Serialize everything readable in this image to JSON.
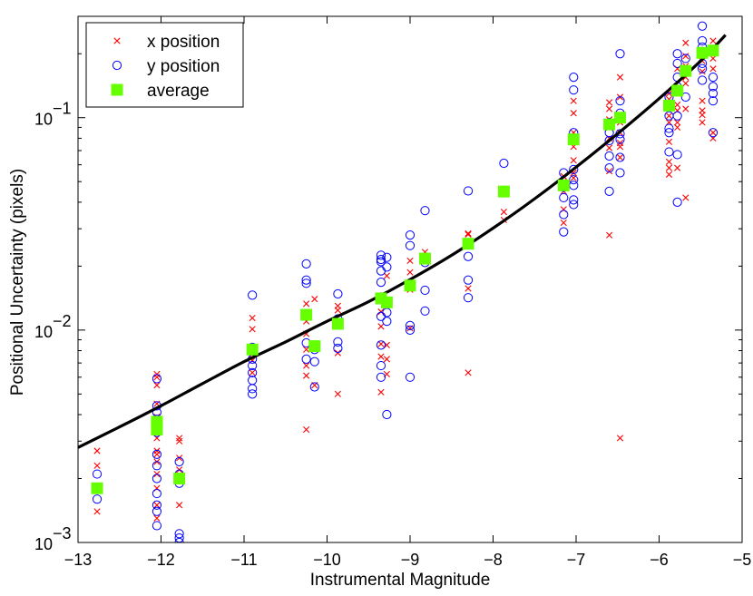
{
  "chart_data": {
    "type": "scatter",
    "xlabel": "Instrumental Magnitude",
    "ylabel": "Positional Uncertainty (pixels)",
    "xlim": [
      -13,
      -5
    ],
    "ylim": [
      0.001,
      0.3
    ],
    "yscale": "log",
    "x_ticks": [
      -13,
      -12,
      -11,
      -10,
      -9,
      -8,
      -7,
      -6,
      -5
    ],
    "x_tick_labels": [
      "−13",
      "−12",
      "−11",
      "−10",
      "−9",
      "−8",
      "−7",
      "−6",
      "−5"
    ],
    "y_ticks": [
      0.001,
      0.01,
      0.1
    ],
    "y_tick_bases": [
      "10",
      "10",
      "10"
    ],
    "y_tick_exponents": [
      "−3",
      "−2",
      "−1"
    ],
    "grid": false,
    "legend": {
      "placement": "top-left",
      "entries": [
        {
          "label": "x position",
          "marker": "x",
          "color": "#ff0000"
        },
        {
          "label": "y position",
          "marker": "o",
          "color": "#0000ff"
        },
        {
          "label": "average",
          "marker": "square",
          "color": "#66ff00"
        }
      ]
    },
    "fit_curve": {
      "name": "model",
      "color": "#000000",
      "x": [
        -13,
        -12.5,
        -12,
        -11.5,
        -11,
        -10.5,
        -10,
        -9.5,
        -9,
        -8.5,
        -8,
        -7.5,
        -7,
        -6.5,
        -6,
        -5.5,
        -5.2
      ],
      "y": [
        0.0028,
        0.0035,
        0.0044,
        0.0056,
        0.0071,
        0.0088,
        0.011,
        0.0136,
        0.0173,
        0.0225,
        0.0302,
        0.0415,
        0.0585,
        0.084,
        0.123,
        0.185,
        0.245
      ]
    },
    "series": [
      {
        "name": "x position",
        "marker": "x",
        "color": "#ff0000",
        "points": [
          [
            -12.77,
            0.0027
          ],
          [
            -12.77,
            0.0023
          ],
          [
            -12.77,
            0.0014
          ],
          [
            -12.05,
            0.0062
          ],
          [
            -12.05,
            0.006
          ],
          [
            -12.05,
            0.0055
          ],
          [
            -12.05,
            0.0045
          ],
          [
            -12.05,
            0.0039
          ],
          [
            -12.05,
            0.0031
          ],
          [
            -12.05,
            0.0027
          ],
          [
            -12.05,
            0.0026
          ],
          [
            -12.05,
            0.0024
          ],
          [
            -12.05,
            0.0021
          ],
          [
            -12.05,
            0.0018
          ],
          [
            -12.05,
            0.0015
          ],
          [
            -12.05,
            0.0013
          ],
          [
            -11.78,
            0.0031
          ],
          [
            -11.78,
            0.003
          ],
          [
            -11.78,
            0.0025
          ],
          [
            -11.78,
            0.0022
          ],
          [
            -11.78,
            0.0015
          ],
          [
            -10.9,
            0.0114
          ],
          [
            -10.9,
            0.0101
          ],
          [
            -10.9,
            0.0077
          ],
          [
            -10.9,
            0.0072
          ],
          [
            -10.9,
            0.0063
          ],
          [
            -10.25,
            0.0133
          ],
          [
            -10.25,
            0.011
          ],
          [
            -10.25,
            0.0096
          ],
          [
            -10.25,
            0.0081
          ],
          [
            -10.25,
            0.0068
          ],
          [
            -10.25,
            0.0061
          ],
          [
            -10.25,
            0.0034
          ],
          [
            -10.15,
            0.014
          ],
          [
            -10.15,
            0.0055
          ],
          [
            -9.87,
            0.013
          ],
          [
            -9.87,
            0.0124
          ],
          [
            -9.87,
            0.0078
          ],
          [
            -9.87,
            0.005
          ],
          [
            -9.35,
            0.0138
          ],
          [
            -9.35,
            0.0122
          ],
          [
            -9.35,
            0.0104
          ],
          [
            -9.35,
            0.0086
          ],
          [
            -9.35,
            0.0075
          ],
          [
            -9.35,
            0.0051
          ],
          [
            -9.28,
            0.018
          ],
          [
            -9.28,
            0.0085
          ],
          [
            -9.28,
            0.0073
          ],
          [
            -9.28,
            0.0062
          ],
          [
            -9.0,
            0.0212
          ],
          [
            -9.0,
            0.0187
          ],
          [
            -9.0,
            0.0155
          ],
          [
            -9.0,
            0.0102
          ],
          [
            -8.82,
            0.0233
          ],
          [
            -8.82,
            0.0211
          ],
          [
            -8.3,
            0.0285
          ],
          [
            -8.3,
            0.0282
          ],
          [
            -8.3,
            0.0157
          ],
          [
            -8.3,
            0.0063
          ],
          [
            -7.87,
            0.0455
          ],
          [
            -7.87,
            0.036
          ],
          [
            -7.87,
            0.033
          ],
          [
            -7.15,
            0.053
          ],
          [
            -7.15,
            0.05
          ],
          [
            -7.15,
            0.045
          ],
          [
            -7.15,
            0.037
          ],
          [
            -7.15,
            0.032
          ],
          [
            -7.03,
            0.12
          ],
          [
            -7.03,
            0.105
          ],
          [
            -7.03,
            0.085
          ],
          [
            -7.03,
            0.073
          ],
          [
            -7.03,
            0.063
          ],
          [
            -7.03,
            0.055
          ],
          [
            -7.03,
            0.052
          ],
          [
            -6.6,
            0.118
          ],
          [
            -6.6,
            0.11
          ],
          [
            -6.6,
            0.098
          ],
          [
            -6.6,
            0.09
          ],
          [
            -6.6,
            0.08
          ],
          [
            -6.6,
            0.072
          ],
          [
            -6.6,
            0.056
          ],
          [
            -6.6,
            0.028
          ],
          [
            -6.47,
            0.155
          ],
          [
            -6.47,
            0.125
          ],
          [
            -6.47,
            0.095
          ],
          [
            -6.47,
            0.085
          ],
          [
            -6.47,
            0.076
          ],
          [
            -6.47,
            0.073
          ],
          [
            -6.47,
            0.065
          ],
          [
            -6.47,
            0.0031
          ],
          [
            -5.88,
            0.13
          ],
          [
            -5.88,
            0.122
          ],
          [
            -5.88,
            0.115
          ],
          [
            -5.88,
            0.102
          ],
          [
            -5.88,
            0.095
          ],
          [
            -5.88,
            0.077
          ],
          [
            -5.88,
            0.062
          ],
          [
            -5.88,
            0.058
          ],
          [
            -5.88,
            0.054
          ],
          [
            -5.78,
            0.17
          ],
          [
            -5.78,
            0.115
          ],
          [
            -5.78,
            0.108
          ],
          [
            -5.78,
            0.095
          ],
          [
            -5.78,
            0.09
          ],
          [
            -5.78,
            0.058
          ],
          [
            -5.68,
            0.225
          ],
          [
            -5.68,
            0.195
          ],
          [
            -5.68,
            0.175
          ],
          [
            -5.68,
            0.155
          ],
          [
            -5.68,
            0.145
          ],
          [
            -5.68,
            0.11
          ],
          [
            -5.68,
            0.042
          ],
          [
            -5.48,
            0.2
          ],
          [
            -5.48,
            0.185
          ],
          [
            -5.48,
            0.165
          ],
          [
            -5.48,
            0.12
          ],
          [
            -5.48,
            0.108
          ],
          [
            -5.48,
            0.103
          ],
          [
            -5.48,
            0.095
          ],
          [
            -5.35,
            0.23
          ],
          [
            -5.35,
            0.19
          ],
          [
            -5.35,
            0.17
          ],
          [
            -5.35,
            0.085
          ],
          [
            -5.35,
            0.08
          ]
        ]
      },
      {
        "name": "y position",
        "marker": "o",
        "color": "#0000ff",
        "points": [
          [
            -12.77,
            0.0021
          ],
          [
            -12.77,
            0.0016
          ],
          [
            -12.05,
            0.0059
          ],
          [
            -12.05,
            0.0044
          ],
          [
            -12.05,
            0.0041
          ],
          [
            -12.05,
            0.0038
          ],
          [
            -12.05,
            0.0033
          ],
          [
            -12.05,
            0.0026
          ],
          [
            -12.05,
            0.0023
          ],
          [
            -12.05,
            0.002
          ],
          [
            -12.05,
            0.0017
          ],
          [
            -12.05,
            0.0015
          ],
          [
            -12.05,
            0.0014
          ],
          [
            -12.05,
            0.0012
          ],
          [
            -11.78,
            0.0024
          ],
          [
            -11.78,
            0.0021
          ],
          [
            -11.78,
            0.0019
          ],
          [
            -11.78,
            0.0011
          ],
          [
            -11.78,
            0.00105
          ],
          [
            -11.78,
            0.001
          ],
          [
            -10.9,
            0.0146
          ],
          [
            -10.9,
            0.0083
          ],
          [
            -10.9,
            0.0073
          ],
          [
            -10.9,
            0.0068
          ],
          [
            -10.9,
            0.0063
          ],
          [
            -10.9,
            0.0058
          ],
          [
            -10.9,
            0.0053
          ],
          [
            -10.9,
            0.005
          ],
          [
            -10.25,
            0.0205
          ],
          [
            -10.25,
            0.0172
          ],
          [
            -10.25,
            0.0166
          ],
          [
            -10.25,
            0.0087
          ],
          [
            -10.25,
            0.0073
          ],
          [
            -10.15,
            0.0081
          ],
          [
            -10.15,
            0.0071
          ],
          [
            -10.15,
            0.0054
          ],
          [
            -9.87,
            0.0148
          ],
          [
            -9.87,
            0.0113
          ],
          [
            -9.87,
            0.0088
          ],
          [
            -9.87,
            0.0082
          ],
          [
            -9.35,
            0.0225
          ],
          [
            -9.35,
            0.0215
          ],
          [
            -9.35,
            0.021
          ],
          [
            -9.35,
            0.019
          ],
          [
            -9.35,
            0.0168
          ],
          [
            -9.35,
            0.0143
          ],
          [
            -9.35,
            0.0116
          ],
          [
            -9.35,
            0.0085
          ],
          [
            -9.35,
            0.0068
          ],
          [
            -9.35,
            0.006
          ],
          [
            -9.28,
            0.022
          ],
          [
            -9.28,
            0.0198
          ],
          [
            -9.28,
            0.0121
          ],
          [
            -9.28,
            0.011
          ],
          [
            -9.28,
            0.004
          ],
          [
            -9.0,
            0.028
          ],
          [
            -9.0,
            0.025
          ],
          [
            -9.0,
            0.0105
          ],
          [
            -9.0,
            0.01
          ],
          [
            -9.0,
            0.006
          ],
          [
            -8.82,
            0.0365
          ],
          [
            -8.82,
            0.0208
          ],
          [
            -8.82,
            0.0154
          ],
          [
            -8.82,
            0.0123
          ],
          [
            -8.3,
            0.0452
          ],
          [
            -8.3,
            0.0222
          ],
          [
            -8.3,
            0.0172
          ],
          [
            -8.3,
            0.0142
          ],
          [
            -7.87,
            0.061
          ],
          [
            -7.87,
            0.045
          ],
          [
            -7.15,
            0.055
          ],
          [
            -7.15,
            0.047
          ],
          [
            -7.15,
            0.042
          ],
          [
            -7.15,
            0.035
          ],
          [
            -7.15,
            0.029
          ],
          [
            -7.03,
            0.155
          ],
          [
            -7.03,
            0.135
          ],
          [
            -7.03,
            0.085
          ],
          [
            -7.03,
            0.057
          ],
          [
            -7.03,
            0.051
          ],
          [
            -7.03,
            0.048
          ],
          [
            -7.03,
            0.041
          ],
          [
            -7.03,
            0.039
          ],
          [
            -6.6,
            0.095
          ],
          [
            -6.6,
            0.085
          ],
          [
            -6.6,
            0.078
          ],
          [
            -6.6,
            0.066
          ],
          [
            -6.6,
            0.058
          ],
          [
            -6.6,
            0.045
          ],
          [
            -6.47,
            0.2
          ],
          [
            -6.47,
            0.12
          ],
          [
            -6.47,
            0.105
          ],
          [
            -6.47,
            0.084
          ],
          [
            -6.47,
            0.079
          ],
          [
            -6.47,
            0.065
          ],
          [
            -6.47,
            0.055
          ],
          [
            -5.88,
            0.125
          ],
          [
            -5.88,
            0.102
          ],
          [
            -5.88,
            0.089
          ],
          [
            -5.88,
            0.085
          ],
          [
            -5.88,
            0.069
          ],
          [
            -5.78,
            0.2
          ],
          [
            -5.78,
            0.18
          ],
          [
            -5.78,
            0.155
          ],
          [
            -5.78,
            0.14
          ],
          [
            -5.78,
            0.102
          ],
          [
            -5.78,
            0.067
          ],
          [
            -5.78,
            0.04
          ],
          [
            -5.68,
            0.19
          ],
          [
            -5.68,
            0.125
          ],
          [
            -5.48,
            0.27
          ],
          [
            -5.48,
            0.23
          ],
          [
            -5.48,
            0.215
          ],
          [
            -5.48,
            0.205
          ],
          [
            -5.48,
            0.18
          ],
          [
            -5.48,
            0.17
          ],
          [
            -5.48,
            0.15
          ],
          [
            -5.35,
            0.155
          ],
          [
            -5.35,
            0.14
          ],
          [
            -5.35,
            0.13
          ],
          [
            -5.35,
            0.12
          ],
          [
            -5.35,
            0.085
          ]
        ]
      },
      {
        "name": "average",
        "marker": "square",
        "color": "#66ff00",
        "points": [
          [
            -12.77,
            0.0018
          ],
          [
            -12.05,
            0.0037
          ],
          [
            -12.05,
            0.0034
          ],
          [
            -11.78,
            0.002
          ],
          [
            -10.9,
            0.0081
          ],
          [
            -10.25,
            0.0118
          ],
          [
            -10.15,
            0.0084
          ],
          [
            -9.87,
            0.0107
          ],
          [
            -9.35,
            0.0141
          ],
          [
            -9.28,
            0.0135
          ],
          [
            -9.0,
            0.0162
          ],
          [
            -8.82,
            0.0217
          ],
          [
            -8.3,
            0.0255
          ],
          [
            -7.87,
            0.0449
          ],
          [
            -7.15,
            0.048
          ],
          [
            -7.03,
            0.079
          ],
          [
            -6.6,
            0.093
          ],
          [
            -6.47,
            0.1
          ],
          [
            -5.88,
            0.114
          ],
          [
            -5.78,
            0.134
          ],
          [
            -5.68,
            0.166
          ],
          [
            -5.48,
            0.202
          ],
          [
            -5.35,
            0.207
          ]
        ]
      }
    ]
  }
}
